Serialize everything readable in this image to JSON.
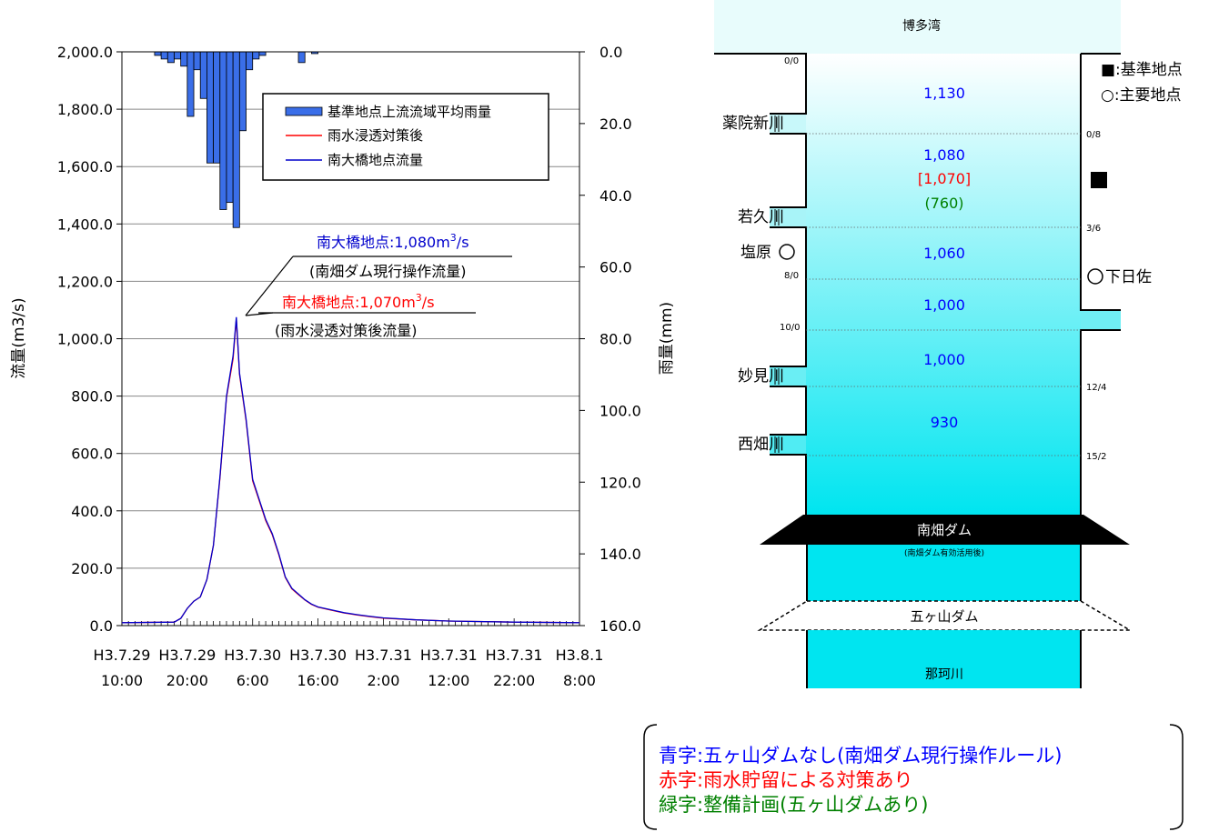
{
  "chart_data": {
    "type": "bar+line",
    "left_axis": {
      "label": "流量(m3/s)",
      "ticks": [
        "2,000.0",
        "1,800.0",
        "1,600.0",
        "1,400.0",
        "1,200.0",
        "1,000.0",
        "800.0",
        "600.0",
        "400.0",
        "200.0",
        "0.0"
      ],
      "range": [
        0,
        2000
      ]
    },
    "right_axis": {
      "label": "雨量(mm)",
      "ticks": [
        "0.0",
        "20.0",
        "40.0",
        "60.0",
        "80.0",
        "100.0",
        "120.0",
        "140.0",
        "160.0"
      ],
      "range": [
        0,
        160
      ],
      "inverted": true
    },
    "x_axis": {
      "labels": [
        {
          "date": "H3.7.29",
          "time": "10:00"
        },
        {
          "date": "H3.7.29",
          "time": "20:00"
        },
        {
          "date": "H3.7.30",
          "time": "6:00"
        },
        {
          "date": "H3.7.30",
          "time": "16:00"
        },
        {
          "date": "H3.7.31",
          "time": "2:00"
        },
        {
          "date": "H3.7.31",
          "time": "12:00"
        },
        {
          "date": "H3.7.31",
          "time": "22:00"
        },
        {
          "date": "H3.8.1",
          "time": "8:00"
        }
      ],
      "hours": 70,
      "step_hours": 10
    },
    "legend": {
      "placement": "top-right",
      "items": [
        {
          "label": "基準地点上流流域平均雨量",
          "kind": "bar",
          "color": "#3a6ee8"
        },
        {
          "label": "雨水浸透対策後",
          "kind": "line",
          "color": "#ff0000"
        },
        {
          "label": "南大橋地点流量",
          "kind": "line",
          "color": "#0000cc"
        }
      ]
    },
    "rainfall_mm": [
      0,
      0,
      0,
      0,
      0,
      0,
      0,
      0,
      0,
      0,
      0,
      0,
      0,
      0,
      0,
      0,
      0,
      0,
      0,
      0,
      0,
      0,
      0,
      0,
      0,
      0,
      0,
      0,
      0,
      0,
      0,
      0,
      0,
      0,
      0,
      0,
      0,
      0,
      0,
      0,
      0,
      0,
      0,
      0,
      0,
      0,
      0,
      0,
      0,
      0,
      0,
      0,
      0,
      0,
      0,
      0,
      0,
      0,
      0,
      0,
      0,
      0,
      0,
      0,
      0,
      0,
      0,
      0,
      0,
      0,
      0
    ],
    "rainfall_bars": [
      {
        "h": 5,
        "v": 1
      },
      {
        "h": 6,
        "v": 2
      },
      {
        "h": 7,
        "v": 3
      },
      {
        "h": 8,
        "v": 2
      },
      {
        "h": 9,
        "v": 4
      },
      {
        "h": 10,
        "v": 18
      },
      {
        "h": 11,
        "v": 5
      },
      {
        "h": 12,
        "v": 13
      },
      {
        "h": 13,
        "v": 31
      },
      {
        "h": 14,
        "v": 31
      },
      {
        "h": 15,
        "v": 44
      },
      {
        "h": 16,
        "v": 42
      },
      {
        "h": 17,
        "v": 49
      },
      {
        "h": 18,
        "v": 22
      },
      {
        "h": 19,
        "v": 5
      },
      {
        "h": 20,
        "v": 2
      },
      {
        "h": 21,
        "v": 1
      },
      {
        "h": 27,
        "v": 3
      },
      {
        "h": 29,
        "v": 0.5
      }
    ],
    "series": [
      {
        "name": "南大橋地点流量",
        "color": "#0000cc",
        "points": [
          [
            0,
            10
          ],
          [
            8,
            12
          ],
          [
            9,
            25
          ],
          [
            10,
            60
          ],
          [
            11,
            85
          ],
          [
            12,
            100
          ],
          [
            13,
            160
          ],
          [
            14,
            280
          ],
          [
            15,
            520
          ],
          [
            16,
            800
          ],
          [
            17,
            940
          ],
          [
            17.5,
            1075
          ],
          [
            18,
            880
          ],
          [
            19,
            720
          ],
          [
            20,
            510
          ],
          [
            21,
            440
          ],
          [
            22,
            370
          ],
          [
            23,
            320
          ],
          [
            24,
            250
          ],
          [
            25,
            170
          ],
          [
            26,
            130
          ],
          [
            27,
            110
          ],
          [
            28,
            90
          ],
          [
            29,
            75
          ],
          [
            30,
            65
          ],
          [
            32,
            55
          ],
          [
            34,
            45
          ],
          [
            36,
            38
          ],
          [
            38,
            32
          ],
          [
            40,
            27
          ],
          [
            45,
            20
          ],
          [
            50,
            16
          ],
          [
            60,
            12
          ],
          [
            70,
            10
          ]
        ]
      },
      {
        "name": "雨水浸透対策後",
        "color": "#ff0000",
        "points": [
          [
            0,
            10
          ],
          [
            8,
            12
          ],
          [
            9,
            25
          ],
          [
            10,
            60
          ],
          [
            11,
            85
          ],
          [
            12,
            100
          ],
          [
            13,
            160
          ],
          [
            14,
            280
          ],
          [
            15,
            515
          ],
          [
            16,
            795
          ],
          [
            17,
            930
          ],
          [
            17.5,
            1068
          ],
          [
            18,
            875
          ],
          [
            19,
            715
          ],
          [
            20,
            505
          ],
          [
            21,
            436
          ],
          [
            22,
            366
          ],
          [
            23,
            317
          ],
          [
            24,
            247
          ],
          [
            25,
            168
          ],
          [
            26,
            128
          ],
          [
            27,
            108
          ],
          [
            28,
            89
          ],
          [
            29,
            74
          ],
          [
            30,
            64
          ],
          [
            32,
            54
          ],
          [
            34,
            44
          ],
          [
            36,
            37
          ],
          [
            38,
            31
          ],
          [
            40,
            26
          ],
          [
            45,
            20
          ],
          [
            50,
            16
          ],
          [
            60,
            12
          ],
          [
            70,
            10
          ]
        ]
      }
    ],
    "annotations": [
      {
        "id": "blue_peak",
        "text_main": "南大橋地点:1,080m",
        "sup": "3",
        "text_unit": "/s",
        "sub": "(南畑ダム現行操作流量)",
        "color": "#0000cc"
      },
      {
        "id": "red_peak",
        "text_main": "南大橋地点:1,070m",
        "sup": "3",
        "text_unit": "/s",
        "sub": "(雨水浸透対策後流量)",
        "color": "#ff0000"
      }
    ]
  },
  "schematic": {
    "sea_label": "博多湾",
    "bottom_label": "那珂川",
    "dam_existing": "南畑ダム",
    "dam_existing_note": "(南畑ダム有効活用後)",
    "dam_planned": "五ヶ山ダム",
    "tributaries": [
      "薬院新川",
      "若久川",
      "妙見川",
      "西畑川"
    ],
    "main_point_left": "塩原",
    "main_point_right": "下日佐",
    "distances_left": [
      "0/0",
      "8/0",
      "10/0"
    ],
    "distances_right": [
      "0/8",
      "3/6",
      "12/4",
      "15/2"
    ],
    "segments": [
      {
        "blue": "1,130"
      },
      {
        "blue": "1,080",
        "red": "[1,070]",
        "green": "(760)"
      },
      {
        "blue": "1,060"
      },
      {
        "blue": "1,000"
      },
      {
        "blue": "1,000"
      },
      {
        "blue": "930"
      }
    ],
    "legend": {
      "base_point": "■:基準地点",
      "main_point": "○:主要地点"
    }
  },
  "notes": {
    "blue_line": "青字:五ヶ山ダムなし(南畑ダム現行操作ルール)",
    "red_line": "赤字:雨水貯留による対策あり",
    "green_line": "緑字:整備計画(五ヶ山ダムあり)"
  },
  "colors": {
    "river": "#00e5f0",
    "bar": "#3a6ee8",
    "blue_text": "#0000ff",
    "red_text": "#ff0000",
    "green_text": "#008000"
  }
}
